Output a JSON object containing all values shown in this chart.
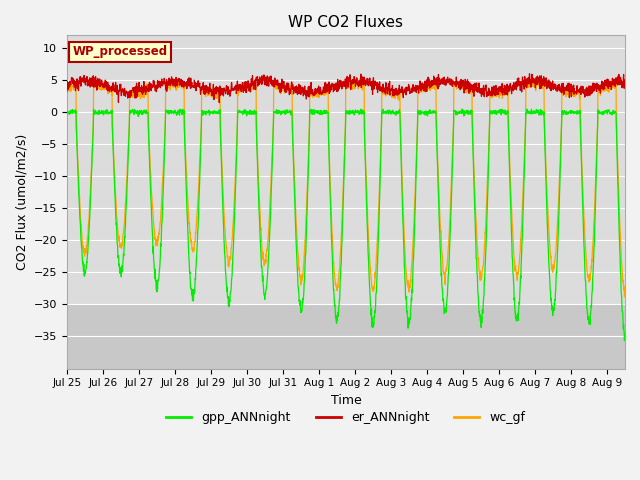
{
  "title": "WP CO2 Fluxes",
  "xlabel": "Time",
  "ylabel_display": "CO2 Flux (umol/m2/s)",
  "ylim": [
    -40,
    12
  ],
  "yticks": [
    -35,
    -30,
    -25,
    -20,
    -15,
    -10,
    -5,
    0,
    5,
    10
  ],
  "n_days": 15.5,
  "n_points": 2000,
  "xtick_labels": [
    "Jul 25",
    "Jul 26",
    "Jul 27",
    "Jul 28",
    "Jul 29",
    "Jul 30",
    "Jul 31",
    "Aug 1",
    "Aug 2",
    "Aug 3",
    "Aug 4",
    "Aug 5",
    "Aug 6",
    "Aug 7",
    "Aug 8",
    "Aug 9"
  ],
  "colors": {
    "gpp": "#00EE00",
    "er": "#CC0000",
    "wc": "#FFA500"
  },
  "legend_entries": [
    "gpp_ANNnight",
    "er_ANNnight",
    "wc_gf"
  ],
  "watermark_text": "WP_processed",
  "watermark_color": "#AA0000",
  "watermark_bg": "#FFFFCC",
  "bg_color_upper": "#DCDCDC",
  "bg_color_lower": "#C8C8C8",
  "bg_split": -30,
  "grid_color": "#FFFFFF"
}
